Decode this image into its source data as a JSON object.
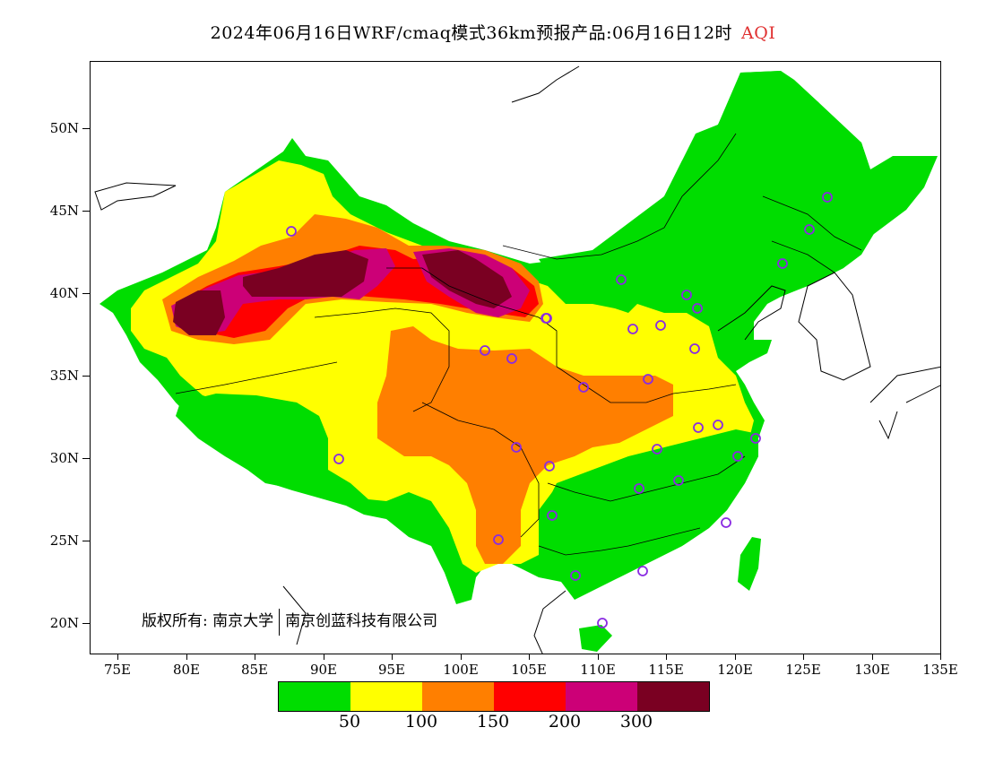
{
  "title": {
    "main": "2024年06月16日WRF/cmaq模式36km预报产品:06月16日12时",
    "variable": "AQI"
  },
  "axes": {
    "lat_labels": [
      "50N",
      "45N",
      "40N",
      "35N",
      "30N",
      "25N",
      "20N"
    ],
    "lon_labels": [
      "75E",
      "80E",
      "85E",
      "90E",
      "95E",
      "100E",
      "105E",
      "110E",
      "115E",
      "120E",
      "125E",
      "130E",
      "135E"
    ],
    "lat_range": [
      18,
      54
    ],
    "lon_range": [
      73,
      135
    ]
  },
  "copyright": {
    "label": "版权所有:",
    "org1": "南京大学",
    "org2": "南京创蓝科技有限公司"
  },
  "legend": {
    "colors": [
      "#00dd00",
      "#ffff00",
      "#ff7f00",
      "#ff0000",
      "#cc0077",
      "#7a0022"
    ],
    "labels": [
      "50",
      "100",
      "150",
      "200",
      "300"
    ]
  },
  "colors": {
    "good": "#00dd00",
    "moderate": "#ffff00",
    "sensitive": "#ff7f00",
    "unhealthy": "#ff0000",
    "very_unhealthy": "#cc0077",
    "hazardous": "#7a0022",
    "station_marker": "#8a2be2"
  }
}
